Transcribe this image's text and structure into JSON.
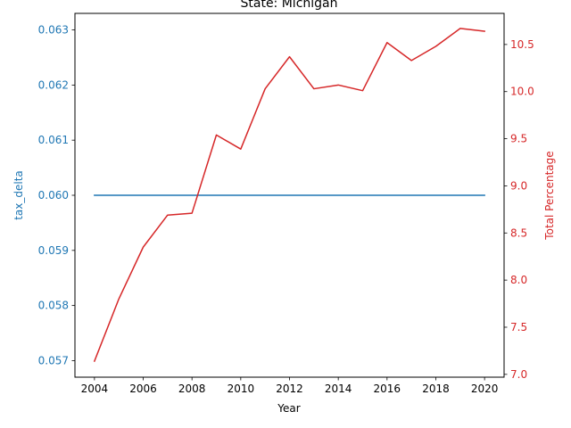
{
  "chart_data": {
    "type": "line",
    "title": "State: Michigan",
    "xlabel": "Year",
    "ylabel_left": "tax_delta",
    "ylabel_right": "Total Percentage",
    "x": [
      2004,
      2005,
      2006,
      2007,
      2008,
      2009,
      2010,
      2011,
      2012,
      2013,
      2014,
      2015,
      2016,
      2017,
      2018,
      2019,
      2020
    ],
    "x_ticks": [
      "2004",
      "2006",
      "2008",
      "2010",
      "2012",
      "2014",
      "2016",
      "2018",
      "2020"
    ],
    "y_left_ticks": [
      "0.057",
      "0.058",
      "0.059",
      "0.060",
      "0.061",
      "0.062",
      "0.063"
    ],
    "y_right_ticks": [
      "7.0",
      "7.5",
      "8.0",
      "8.5",
      "9.0",
      "9.5",
      "10.0",
      "10.5"
    ],
    "xlim": [
      2003.2,
      2020.8
    ],
    "ylim_left": [
      0.0567,
      0.0633
    ],
    "ylim_right": [
      6.97,
      10.83
    ],
    "grid": false,
    "series": [
      {
        "axis": "left",
        "color": "#1f77b4",
        "values": [
          0.06,
          0.06,
          0.06,
          0.06,
          0.06,
          0.06,
          0.06,
          0.06,
          0.06,
          0.06,
          0.06,
          0.06,
          0.06,
          0.06,
          0.06,
          0.06,
          0.06
        ]
      },
      {
        "axis": "right",
        "color": "#d62728",
        "values": [
          7.14,
          7.8,
          8.35,
          8.69,
          8.71,
          9.54,
          9.39,
          10.03,
          10.37,
          10.03,
          10.07,
          10.01,
          10.52,
          10.33,
          10.48,
          10.67,
          10.64
        ]
      }
    ]
  }
}
